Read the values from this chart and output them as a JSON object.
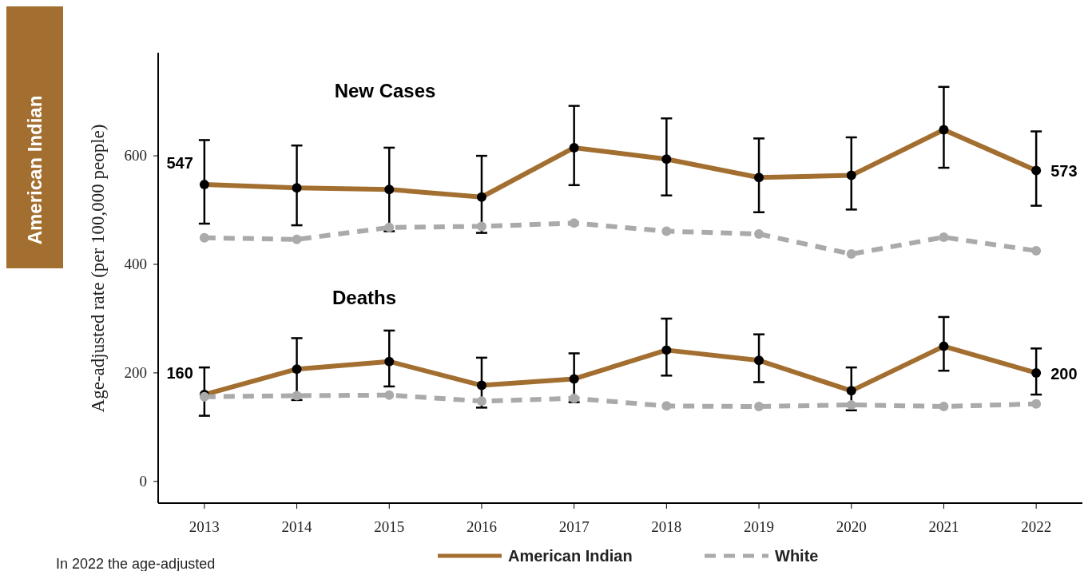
{
  "chart_data": {
    "type": "line",
    "ylabel": "Age-adjusted rate (per 100,000 people)",
    "categories": [
      "2013",
      "2014",
      "2015",
      "2016",
      "2017",
      "2018",
      "2019",
      "2020",
      "2021",
      "2022"
    ],
    "ylim": [
      -40,
      790
    ],
    "yticks": [
      0,
      200,
      400,
      600
    ],
    "grid": false,
    "legend": "bottom",
    "marker": "circle",
    "annotations": [
      "New Cases",
      "Deaths",
      "American Indian",
      "In 2022 the age-adjusted"
    ],
    "series": [
      {
        "name": "American Indian",
        "color": "#a36f30",
        "line_style": "solid",
        "values": [
          547,
          541,
          538,
          524,
          615,
          594,
          560,
          564,
          648,
          573
        ],
        "errors": [
          [
            475,
            629
          ],
          [
            472,
            619
          ],
          [
            461,
            615
          ],
          [
            458,
            600
          ],
          [
            546,
            692
          ],
          [
            527,
            669
          ],
          [
            496,
            632
          ],
          [
            501,
            634
          ],
          [
            578,
            727
          ],
          [
            508,
            645
          ]
        ],
        "value_labels": [
          "547",
          null,
          null,
          null,
          null,
          null,
          null,
          null,
          null,
          "573"
        ]
      },
      {
        "name": "White",
        "color": "#aaaaaa",
        "line_style": "dashed",
        "values": [
          449,
          446,
          468,
          470,
          476,
          461,
          456,
          419,
          450,
          425
        ]
      },
      {
        "color": "#a36f30",
        "line_style": "solid",
        "values": [
          160,
          207,
          221,
          177,
          189,
          242,
          223,
          167,
          249,
          200
        ],
        "errors": [
          [
            121,
            210
          ],
          [
            150,
            264
          ],
          [
            175,
            278
          ],
          [
            136,
            228
          ],
          [
            146,
            236
          ],
          [
            195,
            300
          ],
          [
            183,
            271
          ],
          [
            131,
            210
          ],
          [
            204,
            303
          ],
          [
            160,
            245
          ]
        ],
        "value_labels": [
          "160",
          null,
          null,
          null,
          null,
          null,
          null,
          null,
          null,
          "200"
        ]
      },
      {
        "color": "#aaaaaa",
        "line_style": "dashed",
        "values": [
          156,
          158,
          159,
          148,
          153,
          139,
          138,
          141,
          138,
          143
        ]
      }
    ]
  }
}
